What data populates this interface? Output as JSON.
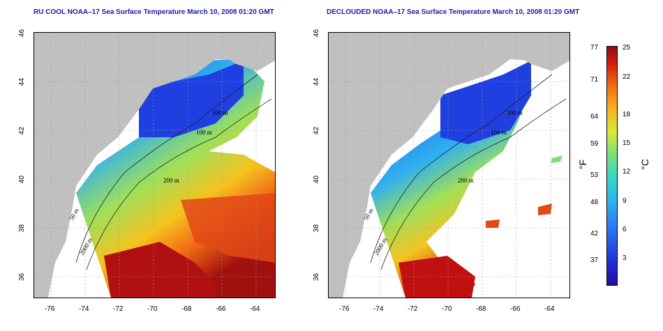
{
  "titles": {
    "left": "RU COOL NOAA–17 Sea Surface Temperature March 10, 2008 01:20 GMT",
    "right": "DECLOUDED NOAA–17 Sea Surface Temperature March 10, 2008 01:20 GMT"
  },
  "x_ticks": [
    "-76",
    "-74",
    "-72",
    "-70",
    "-68",
    "-66",
    "-64"
  ],
  "y_ticks": [
    "46",
    "44",
    "42",
    "40",
    "38",
    "36"
  ],
  "contour_labels": [
    "100 m",
    "100 m",
    "200 m",
    "50 m",
    "2000 m"
  ],
  "colorbar": {
    "unit_left": "°F",
    "unit_right": "°C",
    "f_ticks": [
      "77",
      "71",
      "64",
      "59",
      "53",
      "48",
      "42",
      "37"
    ],
    "c_ticks": [
      "25",
      "22",
      "18",
      "15",
      "12",
      "9",
      "6",
      "3"
    ]
  },
  "colors": {
    "land": "#c0c0c0",
    "ocean_missing": "#ffffff",
    "cold": "#1f3fe0",
    "warm": "#c01010",
    "title": "#1a1aa8"
  }
}
